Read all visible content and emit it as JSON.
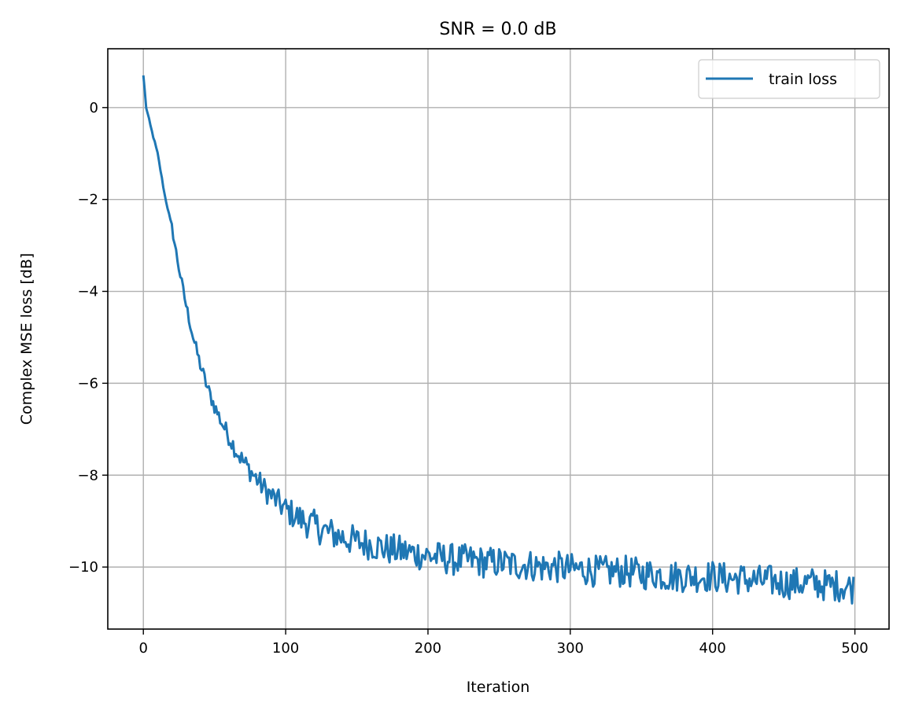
{
  "chart_data": {
    "type": "line",
    "title": "SNR = 0.0 dB",
    "xlabel": "Iteration",
    "ylabel": "Complex MSE loss [dB]",
    "xlim": [
      -25,
      524
    ],
    "ylim": [
      -11.35,
      1.28
    ],
    "xticks": [
      0,
      100,
      200,
      300,
      400,
      500
    ],
    "yticks": [
      0,
      -2,
      -4,
      -6,
      -8,
      -10
    ],
    "ytick_labels": [
      "0",
      "−2",
      "−4",
      "−6",
      "−8",
      "−10"
    ],
    "grid": true,
    "legend": {
      "position": "upper right",
      "entries": [
        "train loss"
      ]
    },
    "series": [
      {
        "name": "train loss",
        "color": "#1f77b4",
        "x": [
          0,
          2,
          5,
          10,
          15,
          20,
          25,
          30,
          35,
          40,
          45,
          50,
          55,
          60,
          65,
          70,
          75,
          80,
          85,
          90,
          95,
          100,
          110,
          120,
          130,
          140,
          150,
          160,
          170,
          180,
          190,
          200,
          210,
          220,
          230,
          240,
          250,
          260,
          270,
          280,
          290,
          300,
          310,
          320,
          330,
          340,
          350,
          360,
          370,
          380,
          390,
          400,
          410,
          420,
          430,
          440,
          450,
          460,
          470,
          480,
          490,
          499
        ],
        "values": [
          0.7,
          0.0,
          -0.4,
          -1.0,
          -1.9,
          -2.6,
          -3.5,
          -4.3,
          -5.0,
          -5.6,
          -6.1,
          -6.5,
          -6.85,
          -7.15,
          -7.45,
          -7.7,
          -7.9,
          -8.1,
          -8.3,
          -8.45,
          -8.6,
          -8.75,
          -8.95,
          -9.1,
          -9.25,
          -9.35,
          -9.45,
          -9.5,
          -9.6,
          -9.65,
          -9.7,
          -9.75,
          -9.8,
          -9.85,
          -9.85,
          -9.9,
          -9.9,
          -9.95,
          -9.95,
          -10.0,
          -10.0,
          -10.05,
          -10.05,
          -10.1,
          -10.1,
          -10.1,
          -10.15,
          -10.15,
          -10.2,
          -10.2,
          -10.2,
          -10.2,
          -10.25,
          -10.25,
          -10.3,
          -10.3,
          -10.35,
          -10.35,
          -10.35,
          -10.4,
          -10.4,
          -10.45
        ]
      }
    ],
    "noise_amplitude_db": {
      "early": 0.1,
      "late": 0.35
    }
  },
  "colors": {
    "line": "#1f77b4",
    "grid": "#b0b0b0",
    "axis": "#000000",
    "legend_border": "#cccccc"
  }
}
